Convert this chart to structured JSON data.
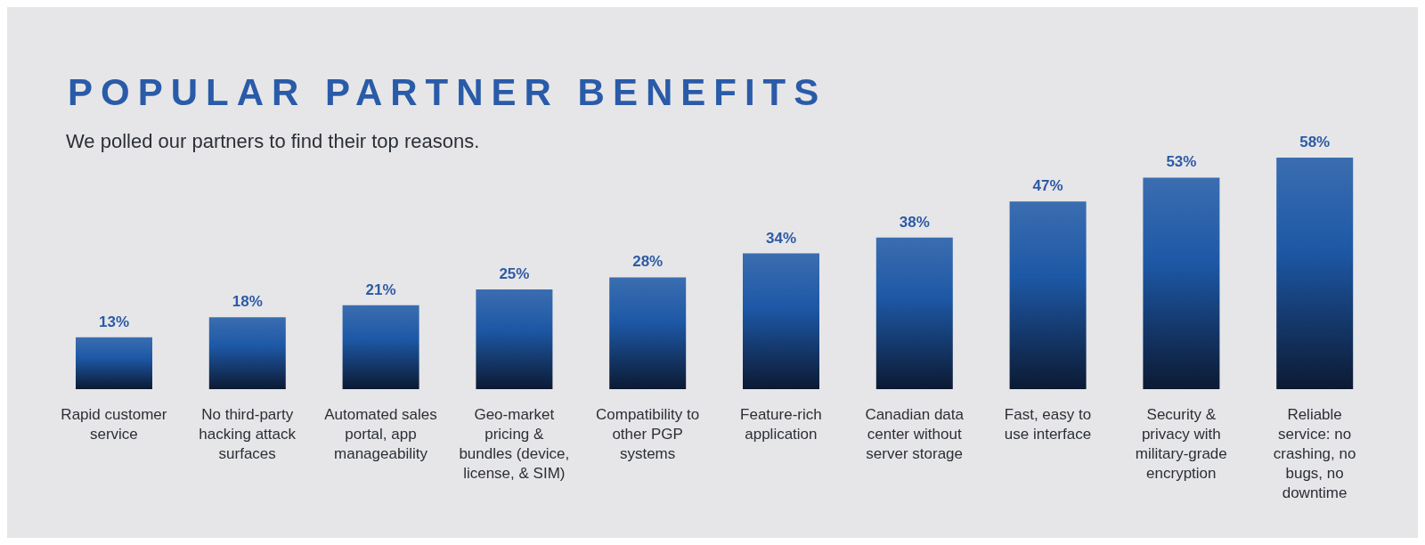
{
  "chart_data": {
    "type": "bar",
    "title": "POPULAR PARTNER BENEFITS",
    "subtitle": "We polled our partners to find their top reasons.",
    "categories": [
      "Rapid customer service",
      "No third-party hacking attack surfaces",
      "Automated sales portal, app manageability",
      "Geo-market pricing & bundles (device, license, & SIM)",
      "Compatibility to other PGP systems",
      "Feature-rich application",
      "Canadian data center without server storage",
      "Fast, easy to use interface",
      "Security & privacy with military-grade encryption",
      "Reliable service: no crashing, no bugs, no downtime"
    ],
    "values": [
      13,
      18,
      21,
      25,
      28,
      34,
      38,
      47,
      53,
      58
    ],
    "color": "#1d58a6",
    "data_labels": true,
    "value_labels": [
      "13%",
      "18%",
      "21%",
      "25%",
      "28%",
      "34%",
      "38%",
      "47%",
      "53%",
      "58%"
    ]
  }
}
